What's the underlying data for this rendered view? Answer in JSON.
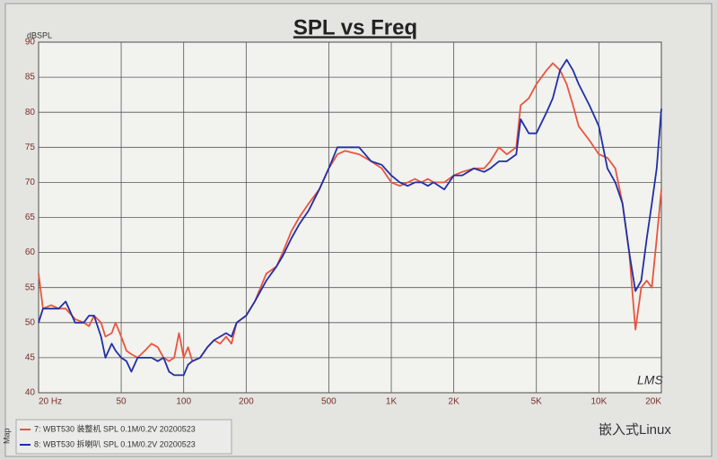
{
  "chart_data": {
    "type": "line",
    "title": "SPL vs Freq",
    "y_label": "dBSPL",
    "annotations": {
      "logo": "LMS",
      "side_label": "Map",
      "watermark": "嵌入式Linux"
    },
    "x_scale": "log",
    "grid": true,
    "xlim": [
      20,
      20000
    ],
    "ylim": [
      40,
      90
    ],
    "xticks": [
      {
        "value": 20,
        "label": "20 Hz"
      },
      50,
      100,
      200,
      500,
      {
        "value": 1000,
        "label": "1K"
      },
      {
        "value": 2000,
        "label": "2K"
      },
      {
        "value": 5000,
        "label": "5K"
      },
      {
        "value": 10000,
        "label": "10K"
      },
      {
        "value": 20000,
        "label": "20K"
      }
    ],
    "yticks": [
      40,
      45,
      50,
      55,
      60,
      65,
      70,
      75,
      80,
      85,
      90
    ],
    "x": [
      20,
      21,
      23,
      25,
      27,
      30,
      33,
      35,
      37,
      40,
      42,
      45,
      47,
      50,
      53,
      56,
      60,
      65,
      70,
      75,
      80,
      85,
      90,
      95,
      100,
      105,
      110,
      120,
      130,
      140,
      150,
      160,
      170,
      180,
      200,
      220,
      250,
      280,
      300,
      330,
      360,
      400,
      450,
      500,
      550,
      600,
      700,
      800,
      900,
      1000,
      1100,
      1200,
      1300,
      1400,
      1500,
      1600,
      1800,
      2000,
      2200,
      2500,
      2800,
      3000,
      3300,
      3600,
      4000,
      4200,
      4600,
      5000,
      5600,
      6000,
      6500,
      7000,
      7500,
      8000,
      9000,
      10000,
      11000,
      12000,
      13000,
      14000,
      15000,
      16000,
      17000,
      18000,
      19000,
      20000
    ],
    "series": [
      {
        "name": "7: WBT530  装整机  SPL  0.1M/0.2V  20200523",
        "color": "#e8553f",
        "values": [
          57,
          52,
          52.5,
          52,
          52,
          50.5,
          50,
          49.5,
          51,
          50,
          48,
          48.5,
          50,
          48,
          46,
          45.5,
          45,
          46,
          47,
          46.5,
          45,
          44.5,
          45,
          48.5,
          45,
          46.5,
          44.5,
          45,
          46.5,
          47.5,
          47,
          48,
          47,
          50,
          51,
          53,
          57,
          58,
          60,
          63,
          65,
          67,
          69,
          72,
          74,
          74.5,
          74,
          73,
          72,
          70,
          69.5,
          70,
          70.5,
          70,
          70.5,
          70,
          70,
          71,
          71.5,
          72,
          72,
          73,
          75,
          74,
          75,
          81,
          82,
          84,
          86,
          87,
          86,
          84,
          81,
          78,
          76,
          74,
          73.5,
          72,
          67,
          60,
          49,
          55,
          56,
          55,
          62,
          69
        ]
      },
      {
        "name": "8: WBT530  拆喇叭  SPL  0.1M/0.2V  20200523",
        "color": "#1f2fa8",
        "values": [
          50,
          52,
          52,
          52,
          53,
          50,
          50,
          51,
          51,
          48,
          45,
          47,
          46,
          45,
          44.5,
          43,
          45,
          45,
          45,
          44.5,
          45,
          43,
          42.5,
          42.5,
          42.5,
          44,
          44.5,
          45,
          46.5,
          47.5,
          48,
          48.5,
          48,
          50,
          51,
          53,
          56,
          58,
          59.5,
          62,
          64,
          66,
          69,
          72,
          75,
          75,
          75,
          73,
          72.5,
          71,
          70,
          69.5,
          70,
          70,
          69.5,
          70,
          69,
          71,
          71,
          72,
          71.5,
          72,
          73,
          73,
          74,
          79,
          77,
          77,
          80,
          82,
          86,
          87.5,
          86,
          84,
          81,
          78,
          72,
          70,
          67,
          60,
          54.5,
          56,
          62,
          67,
          72,
          80.5
        ]
      }
    ]
  }
}
